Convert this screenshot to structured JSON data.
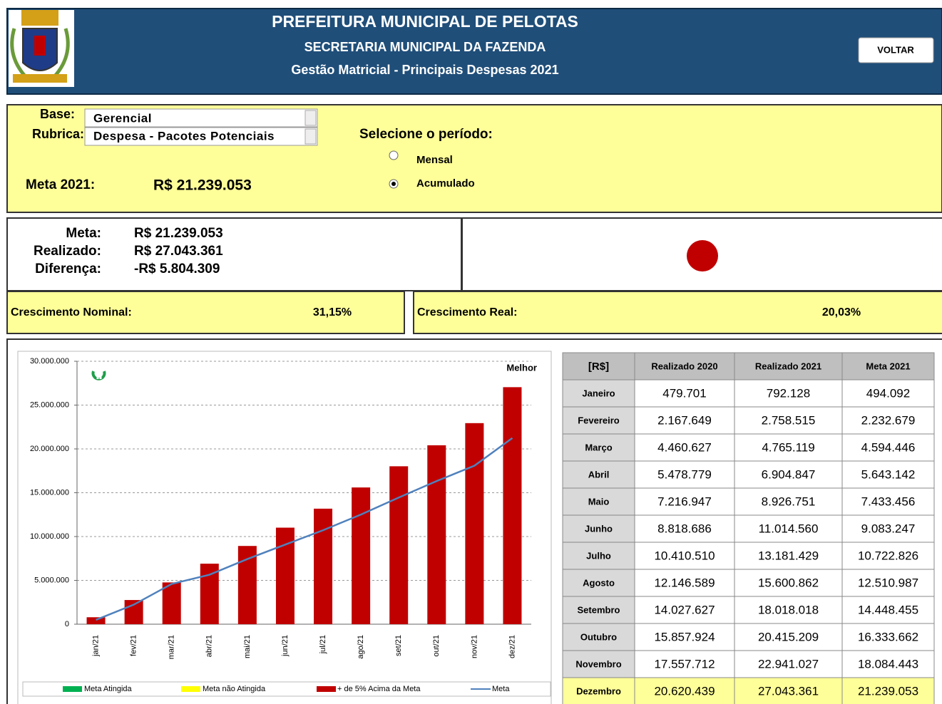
{
  "header": {
    "title": "PREFEITURA MUNICIPAL DE PELOTAS",
    "subtitle": "SECRETARIA MUNICIPAL DA FAZENDA",
    "report": "Gestão Matricial - Principais Despesas 2021",
    "back_button": "VOLTAR"
  },
  "filters": {
    "base_label": "Base:",
    "base_value": "Gerencial",
    "rubrica_label": "Rubrica:",
    "rubrica_value": "Despesa - Pacotes Potenciais",
    "period_label": "Selecione o período:",
    "period_options": [
      "Mensal",
      "Acumulado"
    ],
    "selected_period": "Acumulado",
    "meta_label": "Meta 2021:",
    "meta_value": "R$ 21.239.053"
  },
  "summary": {
    "rows": [
      [
        "Meta:",
        "R$ 21.239.053"
      ],
      [
        "Realizado:",
        "R$ 27.043.361"
      ],
      [
        "Diferença:",
        "-R$ 5.804.309"
      ]
    ],
    "status_color": "#c00000"
  },
  "growth": [
    {
      "label": "Crescimento Nominal:",
      "value": "31,15%"
    },
    {
      "label": "Crescimento Real:",
      "value": "20,03%"
    }
  ],
  "chart_data": {
    "type": "bar",
    "annotation": "Melhor",
    "categories": [
      "jan/21",
      "fev/21",
      "mar/21",
      "abr/21",
      "mai/21",
      "jun/21",
      "jul/21",
      "ago/21",
      "set/21",
      "out/21",
      "nov/21",
      "dez/21"
    ],
    "series": [
      {
        "name": "Meta Atingida",
        "color": "#00b050",
        "values": [
          null,
          null,
          null,
          null,
          null,
          null,
          null,
          null,
          null,
          null,
          null,
          null
        ]
      },
      {
        "name": "Meta não Atingida",
        "color": "#ffff00",
        "values": [
          null,
          null,
          null,
          null,
          null,
          null,
          null,
          null,
          null,
          null,
          null,
          null
        ]
      },
      {
        "name": "+ de 5% Acima da Meta",
        "color": "#c00000",
        "values": [
          792128,
          2758515,
          4765119,
          6904847,
          8926751,
          11014560,
          13181429,
          15600862,
          18018018,
          20415209,
          22941027,
          27043361
        ]
      },
      {
        "name": "Meta",
        "color": "#4f81bd",
        "type": "line",
        "values": [
          494092,
          2232679,
          4594446,
          5643142,
          7433456,
          9083247,
          10722826,
          12510987,
          14448455,
          16333662,
          18084443,
          21239053
        ]
      }
    ],
    "ylim": [
      0,
      30000000
    ],
    "yticks": [
      0,
      {
        "value": 5000000,
        "label": "5.000.000"
      },
      {
        "value": 10000000,
        "label": "10.000.000"
      },
      {
        "value": 15000000,
        "label": "15.000.000"
      },
      {
        "value": 20000000,
        "label": "20.000.000"
      },
      {
        "value": 25000000,
        "label": "25.000.000"
      },
      {
        "value": 30000000,
        "label": "30.000.000"
      }
    ],
    "grid": true
  },
  "table": {
    "header": [
      "[R$]",
      "Realizado 2020",
      "Realizado 2021",
      "Meta 2021"
    ],
    "rows": [
      [
        "Janeiro",
        "479.701",
        "792.128",
        "494.092"
      ],
      [
        "Fevereiro",
        "2.167.649",
        "2.758.515",
        "2.232.679"
      ],
      [
        "Março",
        "4.460.627",
        "4.765.119",
        "4.594.446"
      ],
      [
        "Abril",
        "5.478.779",
        "6.904.847",
        "5.643.142"
      ],
      [
        "Maio",
        "7.216.947",
        "8.926.751",
        "7.433.456"
      ],
      [
        "Junho",
        "8.818.686",
        "11.014.560",
        "9.083.247"
      ],
      [
        "Julho",
        "10.410.510",
        "13.181.429",
        "10.722.826"
      ],
      [
        "Agosto",
        "12.146.589",
        "15.600.862",
        "12.510.987"
      ],
      [
        "Setembro",
        "14.027.627",
        "18.018.018",
        "14.448.455"
      ],
      [
        "Outubro",
        "15.857.924",
        "20.415.209",
        "16.333.662"
      ],
      [
        "Novembro",
        "17.557.712",
        "22.941.027",
        "18.084.443"
      ],
      [
        "Dezembro",
        "20.620.439",
        "27.043.361",
        "21.239.053"
      ]
    ]
  }
}
